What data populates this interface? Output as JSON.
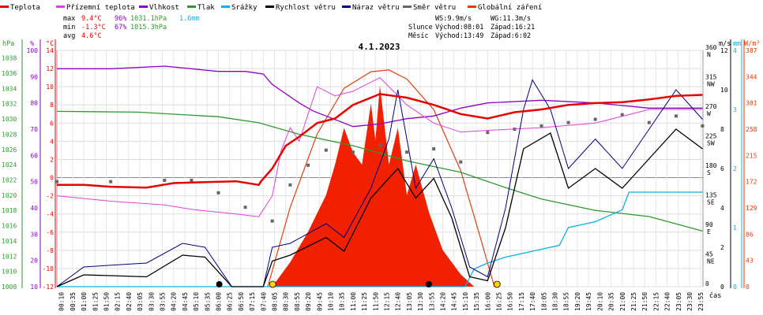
{
  "chart_data": {
    "type": "line",
    "title": "4.1.2023",
    "legend": [
      {
        "label": "Teplota",
        "color": "#e60000"
      },
      {
        "label": "Přízemní teplota",
        "color": "#e040e0"
      },
      {
        "label": "Vlhkost",
        "color": "#9000c0"
      },
      {
        "label": "Tlak",
        "color": "#2e9a2e"
      },
      {
        "label": "Srážky",
        "color": "#10b0e0"
      },
      {
        "label": "Rychlost větru",
        "color": "#000000"
      },
      {
        "label": "Náraz větru",
        "color": "#000080"
      },
      {
        "label": "Směr větru",
        "color": "#666666"
      },
      {
        "label": "Globální záření",
        "color": "#e83800"
      }
    ],
    "stats": {
      "max_label": "max",
      "max_temp": "9.4°C",
      "max_hum": "96%",
      "max_press": "1031.1hPa",
      "rain": "1.6mm",
      "min_label": "min",
      "min_temp": "-1.3°C",
      "min_hum": "67%",
      "min_press": "1015.3hPa",
      "avg_label": "avg",
      "avg_temp": "4.6°C"
    },
    "info": {
      "ws": "WS:9.9m/s",
      "wg": "WG:11.3m/s",
      "slunce": "Slunce",
      "slunce_rise": "Východ:08:01",
      "slunce_set": "Západ:16:21",
      "mesic": "Měsíc",
      "mesic_rise": "Východ:13:49",
      "mesic_set": "Západ:6:02"
    },
    "axes": {
      "hpa_title": "hPa",
      "hum_title": "%",
      "temp_title": "°C",
      "ms_title": "m/s",
      "mm_title": "mm",
      "wm_title": "W/m²",
      "x_title": "čas",
      "hpa_ticks": [
        "1038",
        "1036",
        "1034",
        "1032",
        "1030",
        "1028",
        "1026",
        "1024",
        "1022",
        "1020",
        "1018",
        "1016",
        "1014",
        "1012",
        "1010",
        "1008"
      ],
      "hum_ticks": [
        "100",
        "90",
        "80",
        "70",
        "60",
        "50",
        "40",
        "30",
        "20",
        "10"
      ],
      "temp_ticks": [
        "14",
        "12",
        "10",
        "8",
        "6",
        "4",
        "2",
        "0",
        "-2",
        "-4",
        "-6",
        "-8",
        "-10",
        "-12"
      ],
      "dir_ticks": [
        {
          "deg": "360",
          "lab": "N"
        },
        {
          "deg": "315",
          "lab": "NW"
        },
        {
          "deg": "270",
          "lab": "W"
        },
        {
          "deg": "225",
          "lab": "SW"
        },
        {
          "deg": "180",
          "lab": "S"
        },
        {
          "deg": "135",
          "lab": "SE"
        },
        {
          "deg": "90",
          "lab": "E"
        },
        {
          "deg": "45",
          "lab": "NE"
        },
        {
          "deg": "0",
          "lab": ""
        }
      ],
      "ms_ticks": [
        "12",
        "10",
        "8",
        "6",
        "4",
        "2",
        "0"
      ],
      "mm_ticks": [
        "4",
        "3",
        "2",
        "1",
        "0"
      ],
      "wm_ticks": [
        "387",
        "344",
        "301",
        "258",
        "215",
        "172",
        "129",
        "86",
        "43",
        "0"
      ],
      "time_ticks": [
        "00:10",
        "00:35",
        "01:00",
        "01:25",
        "01:50",
        "02:15",
        "02:40",
        "03:05",
        "03:30",
        "03:55",
        "04:20",
        "04:45",
        "05:10",
        "05:35",
        "06:00",
        "06:25",
        "06:50",
        "07:15",
        "07:40",
        "08:05",
        "08:30",
        "08:55",
        "09:20",
        "09:45",
        "10:10",
        "10:35",
        "11:00",
        "11:25",
        "11:50",
        "12:15",
        "12:40",
        "13:05",
        "13:30",
        "13:55",
        "14:20",
        "14:45",
        "15:10",
        "15:35",
        "16:00",
        "16:25",
        "16:50",
        "17:15",
        "17:40",
        "18:05",
        "18:30",
        "18:55",
        "19:20",
        "19:45",
        "20:10",
        "20:35",
        "21:00",
        "21:25",
        "21:50",
        "22:15",
        "22:40",
        "23:05",
        "23:30",
        "23:55"
      ]
    },
    "series": {
      "temperature_c": [
        [
          0,
          -0.8
        ],
        [
          60,
          -0.8
        ],
        [
          120,
          -1.0
        ],
        [
          200,
          -1.1
        ],
        [
          260,
          -0.6
        ],
        [
          330,
          -0.5
        ],
        [
          400,
          -0.4
        ],
        [
          450,
          -0.8
        ],
        [
          455,
          -0.4
        ],
        [
          480,
          1.0
        ],
        [
          510,
          3.5
        ],
        [
          540,
          4.5
        ],
        [
          580,
          6.0
        ],
        [
          620,
          6.5
        ],
        [
          660,
          8.0
        ],
        [
          720,
          9.2
        ],
        [
          780,
          8.8
        ],
        [
          840,
          8.0
        ],
        [
          900,
          7.0
        ],
        [
          960,
          6.5
        ],
        [
          1020,
          7.2
        ],
        [
          1080,
          7.5
        ],
        [
          1140,
          8.0
        ],
        [
          1200,
          8.2
        ],
        [
          1260,
          8.3
        ],
        [
          1320,
          8.6
        ],
        [
          1380,
          9.0
        ],
        [
          1439,
          9.1
        ]
      ],
      "ground_temp_c": [
        [
          0,
          -2.0
        ],
        [
          120,
          -2.6
        ],
        [
          240,
          -3.0
        ],
        [
          300,
          -3.5
        ],
        [
          400,
          -4.0
        ],
        [
          450,
          -4.3
        ],
        [
          480,
          -2.0
        ],
        [
          500,
          3.0
        ],
        [
          520,
          5.5
        ],
        [
          540,
          4.0
        ],
        [
          580,
          10.0
        ],
        [
          620,
          9.0
        ],
        [
          660,
          9.5
        ],
        [
          720,
          11.0
        ],
        [
          780,
          8.0
        ],
        [
          840,
          6.0
        ],
        [
          900,
          5.0
        ],
        [
          960,
          5.2
        ],
        [
          1080,
          5.5
        ],
        [
          1200,
          6.0
        ],
        [
          1320,
          7.5
        ],
        [
          1439,
          7.5
        ]
      ],
      "humidity_pct": [
        [
          0,
          93
        ],
        [
          120,
          93
        ],
        [
          240,
          94
        ],
        [
          360,
          92
        ],
        [
          420,
          92
        ],
        [
          460,
          91
        ],
        [
          480,
          87
        ],
        [
          540,
          80
        ],
        [
          570,
          77
        ],
        [
          600,
          75
        ],
        [
          660,
          71
        ],
        [
          720,
          72
        ],
        [
          780,
          74
        ],
        [
          840,
          75
        ],
        [
          900,
          78
        ],
        [
          960,
          80
        ],
        [
          1080,
          81
        ],
        [
          1200,
          80
        ],
        [
          1320,
          78
        ],
        [
          1439,
          78
        ]
      ],
      "pressure_hpa": [
        [
          0,
          1031.0
        ],
        [
          180,
          1030.9
        ],
        [
          360,
          1030.3
        ],
        [
          450,
          1029.5
        ],
        [
          540,
          1028.0
        ],
        [
          660,
          1026.5
        ],
        [
          780,
          1024.5
        ],
        [
          900,
          1023.0
        ],
        [
          1000,
          1021.0
        ],
        [
          1080,
          1019.5
        ],
        [
          1200,
          1018.0
        ],
        [
          1320,
          1017.2
        ],
        [
          1439,
          1015.3
        ]
      ],
      "rain_mm": [
        [
          0,
          0
        ],
        [
          910,
          0
        ],
        [
          930,
          0.3
        ],
        [
          960,
          0.4
        ],
        [
          1000,
          0.5
        ],
        [
          1120,
          0.7
        ],
        [
          1140,
          1.0
        ],
        [
          1200,
          1.1
        ],
        [
          1260,
          1.3
        ],
        [
          1275,
          1.6
        ],
        [
          1439,
          1.6
        ]
      ],
      "wind_speed_ms": [
        [
          0,
          0
        ],
        [
          60,
          0.6
        ],
        [
          200,
          0.5
        ],
        [
          280,
          1.6
        ],
        [
          330,
          1.5
        ],
        [
          390,
          0
        ],
        [
          460,
          0
        ],
        [
          480,
          1.3
        ],
        [
          520,
          1.6
        ],
        [
          600,
          2.5
        ],
        [
          640,
          1.8
        ],
        [
          700,
          4.5
        ],
        [
          760,
          6.0
        ],
        [
          800,
          4.5
        ],
        [
          840,
          5.5
        ],
        [
          880,
          3.5
        ],
        [
          920,
          0.5
        ],
        [
          960,
          0.3
        ],
        [
          1000,
          3.0
        ],
        [
          1040,
          7.0
        ],
        [
          1100,
          7.8
        ],
        [
          1140,
          5.0
        ],
        [
          1200,
          6.0
        ],
        [
          1260,
          5.0
        ],
        [
          1320,
          6.5
        ],
        [
          1380,
          8.0
        ],
        [
          1439,
          7.0
        ]
      ],
      "wind_gust_ms": [
        [
          0,
          0
        ],
        [
          60,
          1.0
        ],
        [
          200,
          1.2
        ],
        [
          280,
          2.2
        ],
        [
          330,
          2.0
        ],
        [
          390,
          0
        ],
        [
          460,
          0
        ],
        [
          480,
          2.0
        ],
        [
          520,
          2.2
        ],
        [
          600,
          3.2
        ],
        [
          640,
          2.5
        ],
        [
          700,
          5.0
        ],
        [
          740,
          7.5
        ],
        [
          760,
          10.0
        ],
        [
          800,
          5.0
        ],
        [
          840,
          6.5
        ],
        [
          880,
          4.0
        ],
        [
          920,
          1.0
        ],
        [
          960,
          0.5
        ],
        [
          1000,
          4.0
        ],
        [
          1040,
          9.0
        ],
        [
          1060,
          10.5
        ],
        [
          1100,
          9.0
        ],
        [
          1140,
          6.0
        ],
        [
          1200,
          7.5
        ],
        [
          1260,
          6.0
        ],
        [
          1320,
          8.0
        ],
        [
          1380,
          10.0
        ],
        [
          1439,
          8.5
        ]
      ],
      "wind_dir_deg": [
        [
          0,
          160
        ],
        [
          120,
          160
        ],
        [
          240,
          162
        ],
        [
          300,
          162
        ],
        [
          360,
          143
        ],
        [
          420,
          121
        ],
        [
          480,
          100
        ],
        [
          520,
          155
        ],
        [
          560,
          185
        ],
        [
          600,
          208
        ],
        [
          660,
          205
        ],
        [
          720,
          215
        ],
        [
          780,
          205
        ],
        [
          840,
          210
        ],
        [
          900,
          190
        ],
        [
          960,
          235
        ],
        [
          1020,
          240
        ],
        [
          1080,
          245
        ],
        [
          1140,
          250
        ],
        [
          1200,
          255
        ],
        [
          1260,
          262
        ],
        [
          1320,
          250
        ],
        [
          1380,
          260
        ],
        [
          1439,
          245
        ]
      ],
      "solar_wm2": [
        [
          480,
          0
        ],
        [
          520,
          40
        ],
        [
          560,
          90
        ],
        [
          600,
          150
        ],
        [
          620,
          200
        ],
        [
          640,
          260
        ],
        [
          660,
          220
        ],
        [
          680,
          200
        ],
        [
          700,
          300
        ],
        [
          710,
          240
        ],
        [
          720,
          330
        ],
        [
          740,
          200
        ],
        [
          760,
          260
        ],
        [
          780,
          150
        ],
        [
          800,
          200
        ],
        [
          830,
          120
        ],
        [
          860,
          60
        ],
        [
          900,
          20
        ],
        [
          930,
          0
        ]
      ],
      "solar_theoretical_wm2": [
        [
          470,
          0
        ],
        [
          520,
          130
        ],
        [
          580,
          250
        ],
        [
          640,
          325
        ],
        [
          700,
          352
        ],
        [
          740,
          355
        ],
        [
          780,
          340
        ],
        [
          840,
          290
        ],
        [
          900,
          190
        ],
        [
          940,
          90
        ],
        [
          975,
          0
        ]
      ]
    },
    "sun_markers": [
      {
        "time": "08:01",
        "kind": "rise"
      },
      {
        "time": "16:21",
        "kind": "set"
      }
    ],
    "moon_markers": [
      {
        "time": "06:02",
        "kind": "set"
      },
      {
        "time": "13:49",
        "kind": "rise"
      }
    ],
    "ranges": {
      "temp": [
        -12,
        14
      ],
      "humidity": [
        10,
        100
      ],
      "pressure": [
        1008,
        1039
      ],
      "wind": [
        0,
        12
      ],
      "rain": [
        0,
        4
      ],
      "solar": [
        0,
        387
      ],
      "dir": [
        0,
        360
      ],
      "minutes": [
        0,
        1440
      ]
    }
  }
}
